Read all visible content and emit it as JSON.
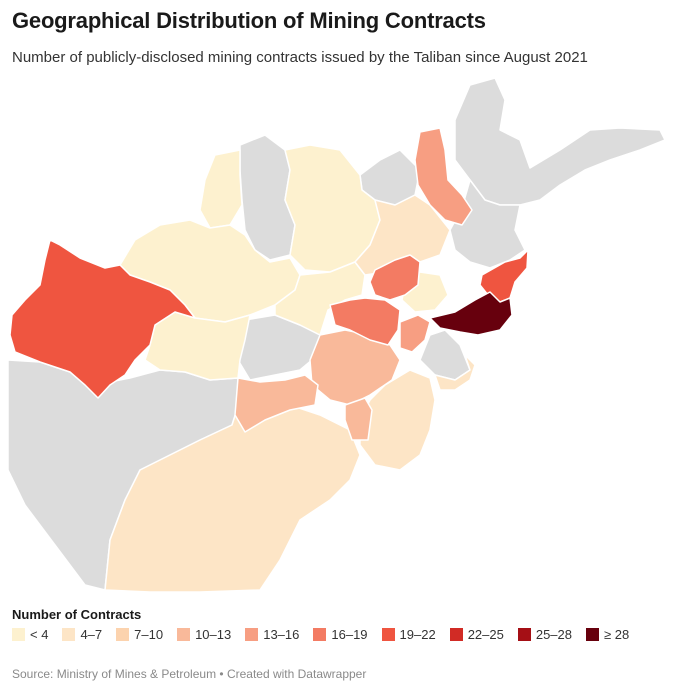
{
  "title": "Geographical Distribution of Mining Contracts",
  "subtitle": "Number of publicly-disclosed mining contracts issued by the Taliban since August 2021",
  "legend": {
    "title": "Number of Contracts",
    "items": [
      {
        "label": "< 4",
        "color": "#fdf1cf"
      },
      {
        "label": "4–7",
        "color": "#fde5c6"
      },
      {
        "label": "7–10",
        "color": "#fcd3ae"
      },
      {
        "label": "10–13",
        "color": "#f9b99a"
      },
      {
        "label": "13–16",
        "color": "#f79e82"
      },
      {
        "label": "16–19",
        "color": "#f37b63"
      },
      {
        "label": "19–22",
        "color": "#ef5540"
      },
      {
        "label": "22–25",
        "color": "#d12b25"
      },
      {
        "label": "25–28",
        "color": "#a50f15"
      },
      {
        "label": "≥ 28",
        "color": "#67000d"
      }
    ]
  },
  "map": {
    "no_data_color": "#dcdcdc",
    "border_color": "#ffffff"
  },
  "source": "Source: Ministry of Mines & Petroleum • Created with Datawrapper"
}
